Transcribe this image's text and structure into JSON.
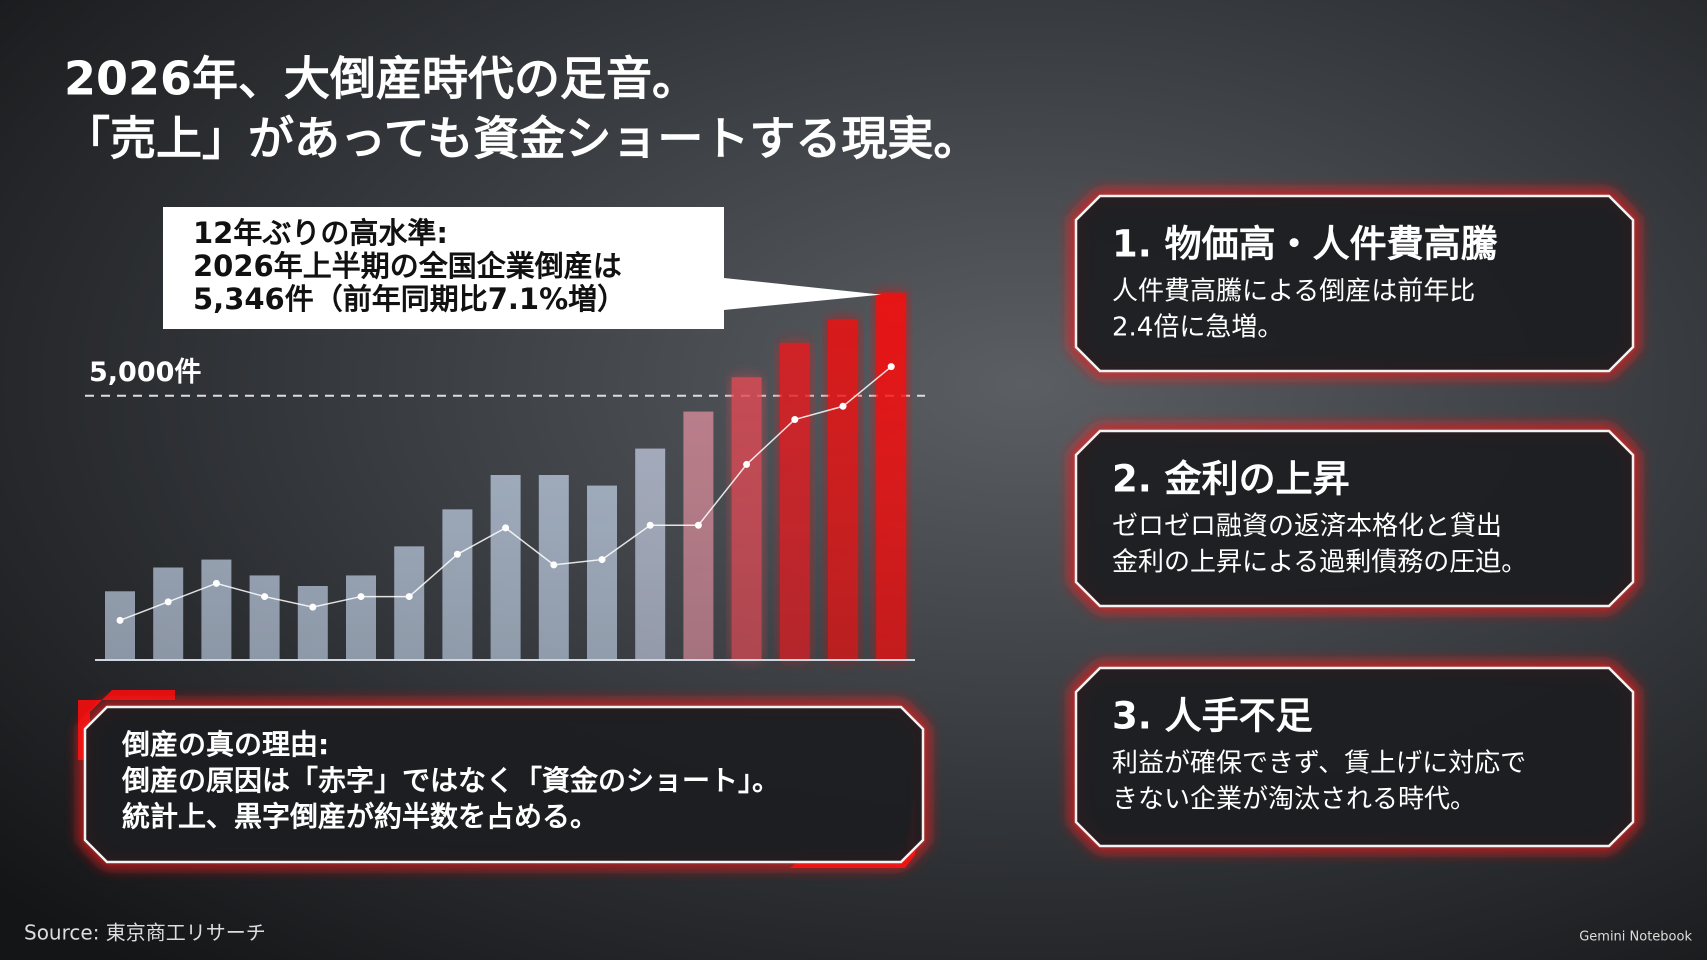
{
  "title_lines": [
    "2026年、大倒産時代の足音。",
    "「売上」があっても資金ショートする現実。"
  ],
  "chart_data": {
    "type": "bar",
    "annotation": [
      "12年ぶりの高水準:",
      "2026年上半期の全国企業倒産は",
      "5,346件（前年同期比7.1%増）"
    ],
    "categories": [
      null,
      null,
      null,
      null,
      null,
      null,
      null,
      null,
      null,
      null,
      null,
      null,
      null,
      null,
      null,
      null,
      null
    ],
    "values": [
      1300,
      1750,
      1900,
      1600,
      1400,
      1600,
      2150,
      2850,
      3500,
      3500,
      3300,
      4000,
      4700,
      5350,
      6000,
      6450,
      6950
    ],
    "colors": [
      "#b9c8dc",
      "#b9c8dc",
      "#b9c8dc",
      "#b9c8dc",
      "#b9c8dc",
      "#b9c8dc",
      "#b9c8dc",
      "#b9c8dc",
      "#b9c8dc",
      "#b9c8dc",
      "#b9c8dc",
      "#bcc4d8",
      "#d48a98",
      "#e04a55",
      "#e81a1f",
      "#f01010",
      "#ff0a0a"
    ],
    "line_values": [
      750,
      1100,
      1450,
      1200,
      1000,
      1200,
      1200,
      2000,
      2500,
      1800,
      1900,
      2550,
      2550,
      3700,
      4550,
      4800,
      5550
    ],
    "line_color": "#ffffff",
    "ylim": [
      0,
      7000
    ],
    "reference_line": {
      "value": 5000,
      "label": "5,000件"
    }
  },
  "panel": {
    "lines": [
      "倒産の真の理由:",
      "倒産の原因は「赤字」ではなく「資金のショート」。",
      "統計上、黒字倒産が約半数を占める。"
    ]
  },
  "cards": [
    {
      "heading": "1. 物価高・人件費高騰",
      "body": [
        "人件費高騰による倒産は前年比",
        "2.4倍に急増。"
      ]
    },
    {
      "heading": "2. 金利の上昇",
      "body": [
        "ゼロゼロ融資の返済本格化と貸出",
        "金利の上昇による過剰債務の圧迫。"
      ]
    },
    {
      "heading": "3. 人手不足",
      "body": [
        "利益が確保できず、賃上げに対応で",
        "きない企業が淘汰される時代。"
      ]
    }
  ],
  "source": "Source: 東京商工リサーチ",
  "brand": "Gemini Notebook"
}
